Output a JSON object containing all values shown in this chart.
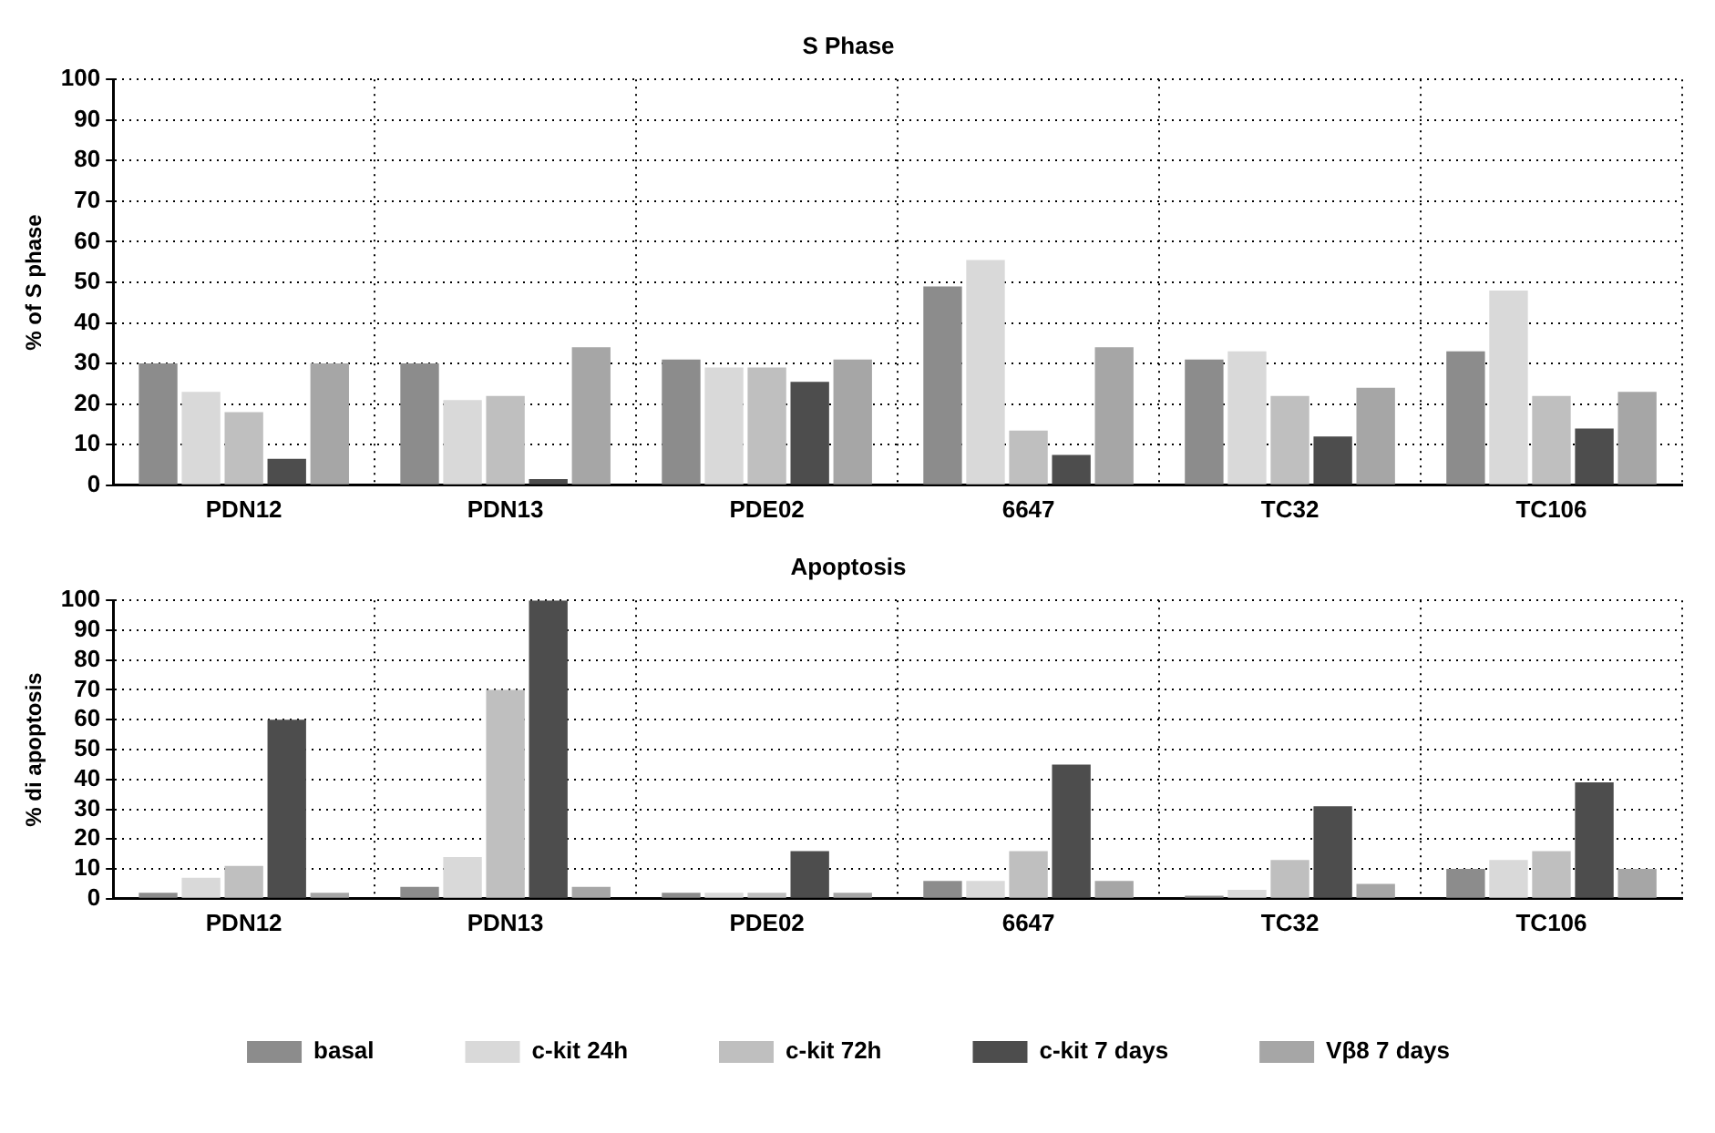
{
  "chart_data": [
    {
      "type": "bar",
      "title": "S Phase",
      "ylabel": "% of S phase",
      "categories": [
        "PDN12",
        "PDN13",
        "PDE02",
        "6647",
        "TC32",
        "TC106"
      ],
      "series": [
        {
          "color": "#8c8c8c",
          "values": [
            30,
            30,
            31,
            49,
            31,
            33
          ]
        },
        {
          "color": "#d9d9d9",
          "values": [
            23,
            21,
            29,
            55.5,
            33,
            48
          ]
        },
        {
          "color": "#bfbfbf",
          "values": [
            18,
            22,
            29,
            13.5,
            22,
            22
          ]
        },
        {
          "color": "#4d4d4d",
          "values": [
            6.5,
            1.5,
            25.5,
            7.5,
            12,
            14
          ]
        },
        {
          "color": "#a6a6a6",
          "values": [
            30,
            34,
            31,
            34,
            24,
            23
          ]
        }
      ],
      "ylim": [
        0,
        100
      ],
      "yticks": [
        0,
        10,
        20,
        30,
        40,
        50,
        60,
        70,
        80,
        90,
        100
      ],
      "grid": true,
      "legend": false
    },
    {
      "type": "bar",
      "title": "Apoptosis",
      "ylabel": "% di apoptosis",
      "categories": [
        "PDN12",
        "PDN13",
        "PDE02",
        "6647",
        "TC32",
        "TC106"
      ],
      "series": [
        {
          "name": "basal",
          "color": "#8c8c8c",
          "values": [
            2,
            4,
            2,
            6,
            1,
            10
          ]
        },
        {
          "name": "c-kit 24h",
          "color": "#d9d9d9",
          "values": [
            7,
            14,
            2,
            6,
            3,
            13
          ]
        },
        {
          "name": "c-kit 72h",
          "color": "#bfbfbf",
          "values": [
            11,
            70,
            2,
            16,
            13,
            16
          ]
        },
        {
          "name": "c-kit 7 days",
          "color": "#4d4d4d",
          "values": [
            60,
            100,
            16,
            45,
            31,
            39
          ]
        },
        {
          "name": "Vβ8 7 days",
          "color": "#a6a6a6",
          "values": [
            2,
            4,
            2,
            6,
            5,
            10
          ]
        }
      ],
      "ylim": [
        0,
        100
      ],
      "yticks": [
        0,
        10,
        20,
        30,
        40,
        50,
        60,
        70,
        80,
        90,
        100
      ],
      "grid": true,
      "legend": "bottom"
    }
  ]
}
